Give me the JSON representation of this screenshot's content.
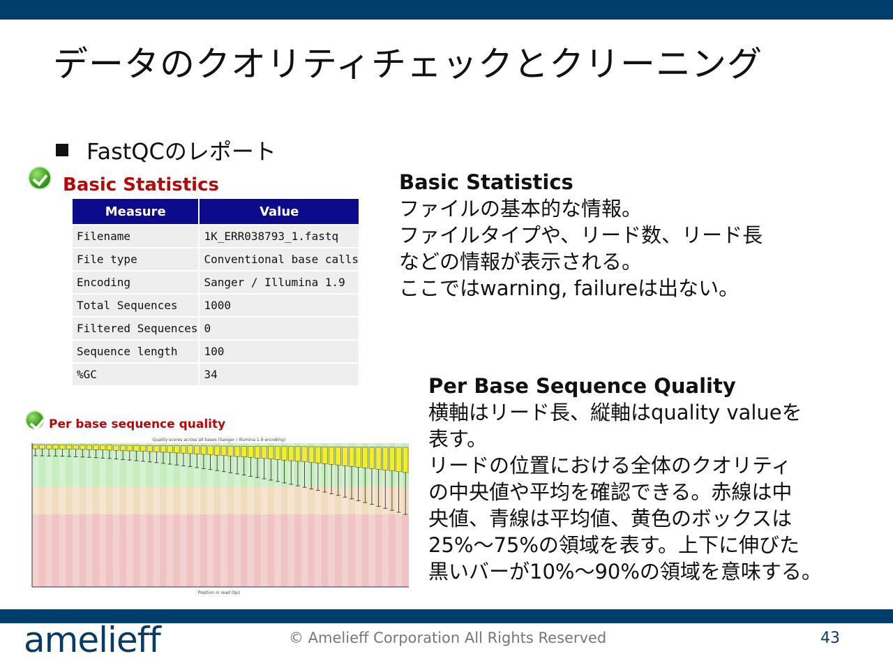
{
  "slide": {
    "title": "データのクオリティチェックとクリーニング",
    "bullet": "FastQCのレポート"
  },
  "basic_stats": {
    "heading": "Basic Statistics",
    "columns": [
      "Measure",
      "Value"
    ],
    "rows": [
      [
        "Filename",
        "1K_ERR038793_1.fastq"
      ],
      [
        "File type",
        "Conventional base calls"
      ],
      [
        "Encoding",
        "Sanger / Illumina 1.9"
      ],
      [
        "Total Sequences",
        "1000"
      ],
      [
        "Filtered Sequences",
        "0"
      ],
      [
        "Sequence length",
        "100"
      ],
      [
        "%GC",
        "34"
      ]
    ],
    "status_icon": "check-icon",
    "status_color": "#3aa21c"
  },
  "basic_stats_desc": {
    "heading": "Basic Statistics",
    "lines": [
      "ファイルの基本的な情報。",
      "ファイルタイプや、リード数、リード長",
      "などの情報が表示される。",
      "ここではwarning, failureは出ない。"
    ]
  },
  "per_base_quality": {
    "heading": "Per base sequence quality",
    "chart_title": "Quality scores across all bases (Sanger / Illumina 1.9 encoding)",
    "xlabel": "Position in read (bp)"
  },
  "per_base_desc": {
    "heading": "Per Base Sequence Quality",
    "lines": [
      "横軸はリード長、縦軸はquality valueを",
      "表す。",
      "リードの位置における全体のクオリティ",
      "の中央値や平均を確認できる。赤線は中",
      "央値、青線は平均値、黄色のボックスは",
      "25%～75%の領域を表す。上下に伸びた",
      "黒いバーが10%～90%の領域を意味する。"
    ]
  },
  "footer": {
    "logo": "amelieff",
    "copyright": "© Amelieff Corporation All Rights Reserved",
    "page": "43"
  },
  "colors": {
    "brand_bar": "#003e6b",
    "heading_red": "#b30a0a",
    "table_header": "#0b0b8c",
    "zone_green": "#c6ecc0",
    "zone_orange": "#f2dcc0",
    "zone_red": "#f0c2c2",
    "box_yellow": "#f2ee2a"
  }
}
